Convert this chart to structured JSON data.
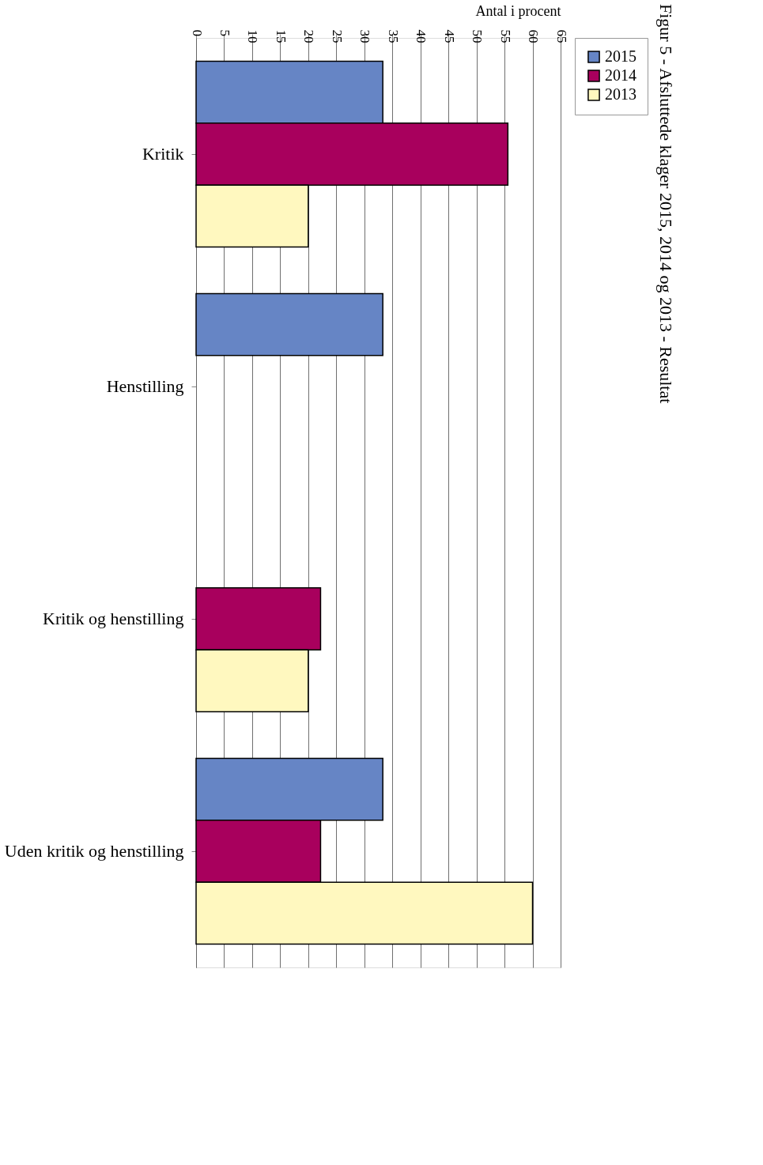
{
  "chart_data": {
    "type": "bar",
    "orientation": "horizontal",
    "title": "Figur 5 - Afsluttede klager 2015, 2014 og 2013 - Resultat",
    "xlabel": "Antal i procent",
    "categories": [
      "Kritik",
      "Henstilling",
      "Kritik og henstilling",
      "Uden kritik og henstilling"
    ],
    "series": [
      {
        "name": "2015",
        "color": "#6685c5",
        "values": [
          33.3,
          33.3,
          null,
          33.3
        ]
      },
      {
        "name": "2014",
        "color": "#a8005d",
        "values": [
          55.6,
          null,
          22.2,
          22.2
        ]
      },
      {
        "name": "2013",
        "color": "#fff8bf",
        "values": [
          20,
          null,
          20,
          60
        ]
      }
    ],
    "xlim": [
      0,
      65
    ],
    "xticks": [
      0,
      5,
      10,
      15,
      20,
      25,
      30,
      35,
      40,
      45,
      50,
      55,
      60,
      65
    ],
    "grid": "x",
    "legend": "right"
  }
}
